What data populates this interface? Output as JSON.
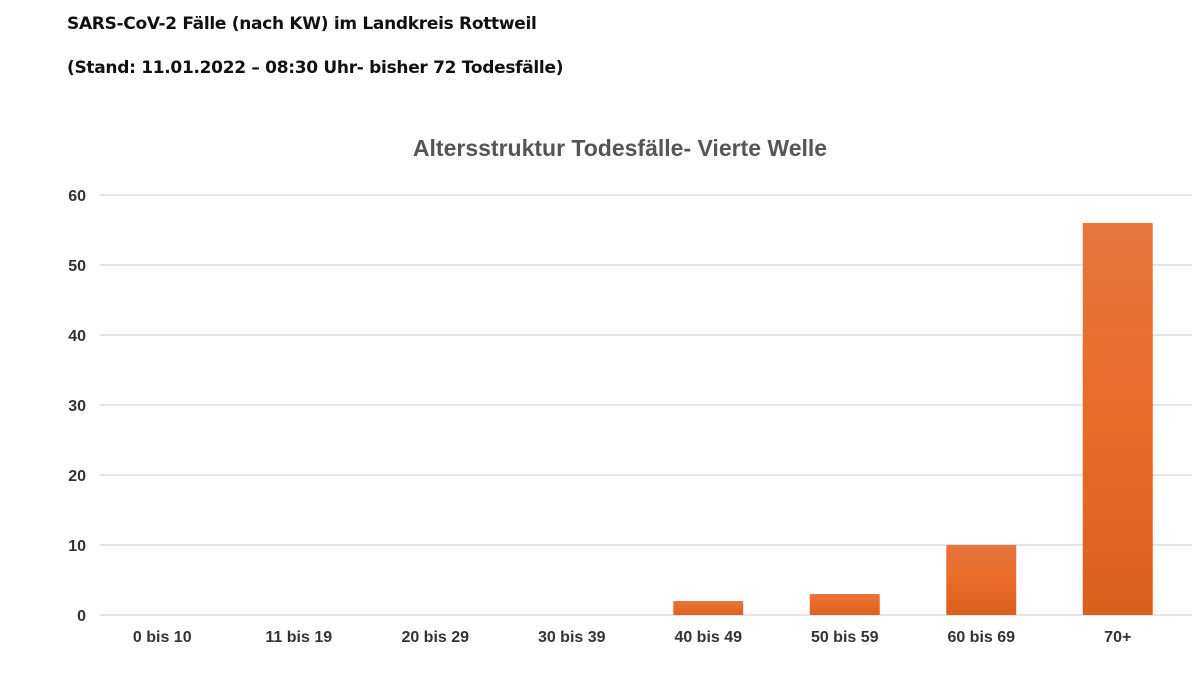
{
  "header": {
    "line1": "SARS-CoV-2 Fälle (nach KW) im Landkreis Rottweil",
    "line2": "(Stand: 11.01.2022 – 08:30 Uhr- bisher 72 Todesfälle)"
  },
  "chart_data": {
    "type": "bar",
    "title": "Altersstruktur Todesfälle- Vierte Welle",
    "categories": [
      "0 bis 10",
      "11 bis 19",
      "20 bis 29",
      "30 bis 39",
      "40 bis 49",
      "50 bis 59",
      "60 bis 69",
      "70+"
    ],
    "values": [
      0,
      0,
      0,
      0,
      2,
      3,
      10,
      56
    ],
    "xlabel": "",
    "ylabel": "",
    "ylim": [
      0,
      60
    ],
    "yticks": [
      0,
      10,
      20,
      30,
      40,
      50,
      60
    ],
    "grid": true,
    "legend": "none",
    "bar_color": "#E8692A"
  }
}
